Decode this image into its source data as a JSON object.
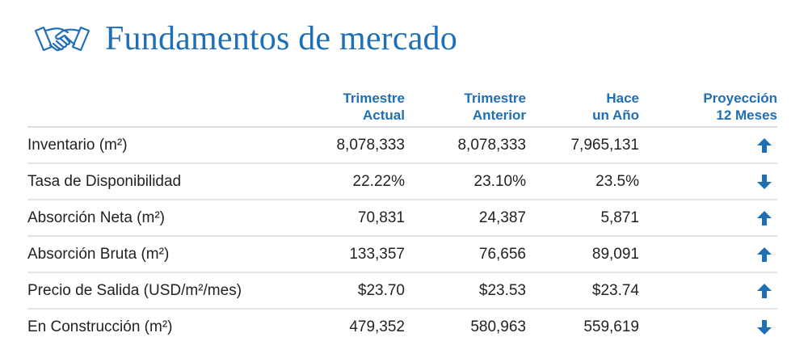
{
  "title": "Fundamentos de mercado",
  "icon": "handshake-icon",
  "colors": {
    "accent": "#1f6fb7",
    "text": "#222222",
    "divider": "#e2e4e8"
  },
  "columns": [
    "Trimestre\nActual",
    "Trimestre\nAnterior",
    "Hace\nun Año",
    "Proyección\n12 Meses"
  ],
  "rows": [
    {
      "label": "Inventario (m²)",
      "actual": "8,078,333",
      "anterior": "8,078,333",
      "hace_un_ano": "7,965,131",
      "projection": "up-arrow-icon"
    },
    {
      "label": "Tasa de Disponibilidad",
      "actual": "22.22%",
      "anterior": "23.10%",
      "hace_un_ano": "23.5%",
      "projection": "down-arrow-icon"
    },
    {
      "label": "Absorción Neta (m²)",
      "actual": "70,831",
      "anterior": "24,387",
      "hace_un_ano": "5,871",
      "projection": "up-arrow-icon"
    },
    {
      "label": "Absorción Bruta (m²)",
      "actual": "133,357",
      "anterior": "76,656",
      "hace_un_ano": "89,091",
      "projection": "up-arrow-icon"
    },
    {
      "label": "Precio de Salida (USD/m²/mes)",
      "actual": "$23.70",
      "anterior": "$23.53",
      "hace_un_ano": "$23.74",
      "projection": "up-arrow-icon"
    },
    {
      "label": "En Construcción (m²)",
      "actual": "479,352",
      "anterior": "580,963",
      "hace_un_ano": "559,619",
      "projection": "down-arrow-icon"
    }
  ]
}
